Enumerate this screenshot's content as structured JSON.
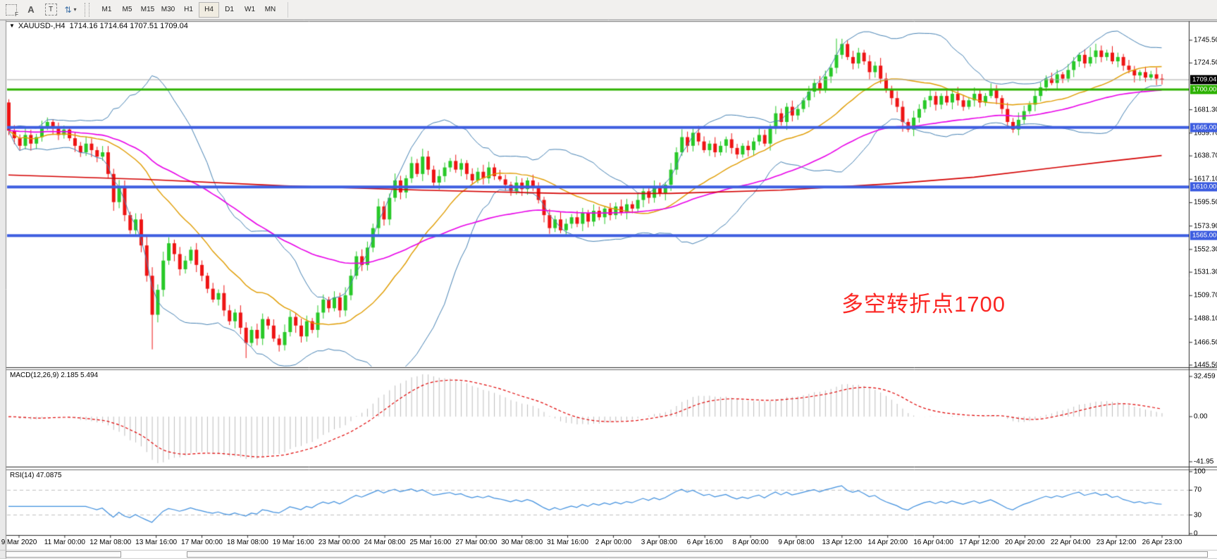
{
  "toolbar": {
    "tools": [
      {
        "name": "fibonacci-tool",
        "glyph": "F"
      },
      {
        "name": "text-label-tool",
        "glyph": "A"
      },
      {
        "name": "text-tool",
        "glyph": "T"
      },
      {
        "name": "arrow-objects-tool",
        "glyph": "⇅"
      }
    ],
    "caret": "▾",
    "timeframes": [
      "M1",
      "M5",
      "M15",
      "M30",
      "H1",
      "H4",
      "D1",
      "W1",
      "MN"
    ],
    "active_timeframe": "H4"
  },
  "chart": {
    "symbol_marker": "▼",
    "symbol_label": "XAUUSD-,H4",
    "ohlc_label": "1714.16 1714.64 1707.51 1709.04",
    "annotation": {
      "text": "多空转折点1700",
      "color": "#fb2623"
    },
    "price_axis": {
      "ticks": [
        "1745.50",
        "1724.50",
        "1681.30",
        "1659.70",
        "1638.70",
        "1617.10",
        "1595.50",
        "1573.90",
        "1552.30",
        "1531.30",
        "1509.70",
        "1488.10",
        "1466.50",
        "1445.50"
      ],
      "current_price": {
        "label": "1709.04",
        "value": 1709.04,
        "bg": "#000000"
      },
      "levels": [
        {
          "label": "1700.00",
          "value": 1700.0,
          "color": "#2db200",
          "width": 3
        },
        {
          "label": "1665.00",
          "value": 1665.0,
          "color": "#3e5ee0",
          "width": 4
        },
        {
          "label": "1610.00",
          "value": 1610.0,
          "color": "#3e5ee0",
          "width": 4
        },
        {
          "label": "1565.00",
          "value": 1565.0,
          "color": "#3e5ee0",
          "width": 4
        }
      ]
    },
    "time_axis": {
      "labels": [
        "9 Mar 2020",
        "11 Mar 00:00",
        "12 Mar 08:00",
        "13 Mar 16:00",
        "17 Mar 00:00",
        "18 Mar 08:00",
        "19 Mar 16:00",
        "23 Mar 00:00",
        "24 Mar 08:00",
        "25 Mar 16:00",
        "27 Mar 00:00",
        "30 Mar 08:00",
        "31 Mar 16:00",
        "2 Apr 00:00",
        "3 Apr 08:00",
        "6 Apr 16:00",
        "8 Apr 00:00",
        "9 Apr 08:00",
        "13 Apr 12:00",
        "14 Apr 20:00",
        "16 Apr 04:00",
        "17 Apr 12:00",
        "20 Apr 20:00",
        "22 Apr 04:00",
        "23 Apr 12:00",
        "26 Apr 23:00"
      ]
    }
  },
  "macd_panel": {
    "label": "MACD(12,26,9) 2.185 5.494",
    "axis": [
      "32.459",
      "0.00",
      "-41.95"
    ]
  },
  "rsi_panel": {
    "label": "RSI(14) 47.0875",
    "axis": [
      "100",
      "70",
      "30",
      "0"
    ],
    "levels": [
      70,
      30
    ]
  },
  "chart_data": {
    "type": "candlestick",
    "symbol": "XAUUSD-",
    "timeframe": "H4",
    "last_bar": {
      "open": 1714.16,
      "high": 1714.64,
      "low": 1707.51,
      "close": 1709.04
    },
    "first_open": 1688,
    "closes": [
      1662,
      1655,
      1648,
      1658,
      1650,
      1656,
      1665,
      1670,
      1664,
      1658,
      1663,
      1655,
      1648,
      1642,
      1650,
      1644,
      1638,
      1642,
      1622,
      1596,
      1610,
      1584,
      1570,
      1580,
      1556,
      1528,
      1492,
      1515,
      1542,
      1558,
      1548,
      1534,
      1542,
      1552,
      1538,
      1528,
      1516,
      1506,
      1512,
      1496,
      1486,
      1494,
      1480,
      1466,
      1478,
      1470,
      1488,
      1482,
      1470,
      1464,
      1476,
      1490,
      1482,
      1472,
      1486,
      1478,
      1494,
      1506,
      1498,
      1508,
      1496,
      1510,
      1528,
      1546,
      1538,
      1554,
      1572,
      1592,
      1580,
      1600,
      1616,
      1605,
      1618,
      1632,
      1622,
      1638,
      1626,
      1614,
      1620,
      1628,
      1634,
      1626,
      1632,
      1622,
      1616,
      1624,
      1618,
      1628,
      1620,
      1617,
      1612,
      1606,
      1614,
      1608,
      1616,
      1610,
      1598,
      1584,
      1572,
      1580,
      1570,
      1576,
      1582,
      1576,
      1586,
      1578,
      1588,
      1582,
      1590,
      1584,
      1592,
      1586,
      1594,
      1590,
      1598,
      1606,
      1600,
      1610,
      1604,
      1612,
      1626,
      1642,
      1656,
      1648,
      1660,
      1652,
      1644,
      1650,
      1642,
      1648,
      1654,
      1646,
      1640,
      1648,
      1644,
      1652,
      1658,
      1650,
      1664,
      1678,
      1670,
      1684,
      1676,
      1682,
      1690,
      1698,
      1706,
      1700,
      1712,
      1720,
      1732,
      1742,
      1730,
      1724,
      1734,
      1726,
      1716,
      1722,
      1710,
      1700,
      1692,
      1684,
      1670,
      1663,
      1674,
      1682,
      1690,
      1694,
      1686,
      1694,
      1688,
      1696,
      1690,
      1684,
      1690,
      1696,
      1688,
      1694,
      1700,
      1692,
      1682,
      1670,
      1663,
      1672,
      1680,
      1686,
      1694,
      1702,
      1710,
      1706,
      1714,
      1710,
      1718,
      1726,
      1732,
      1724,
      1730,
      1736,
      1730,
      1734,
      1726,
      1730,
      1722,
      1718,
      1713,
      1716,
      1711,
      1714,
      1710,
      1709.04
    ],
    "wick_low_overrides": {
      "26": 1460,
      "43": 1452,
      "49": 1458,
      "162": 1661,
      "182": 1660
    },
    "wick_high_overrides": {
      "0": 1691,
      "150": 1747,
      "196": 1739
    },
    "indicators": {
      "bollinger": {
        "period": 20,
        "deviation": 2
      },
      "ma_mid": {
        "type": "sma",
        "period": 20
      },
      "ma_slow": {
        "type": "ema",
        "period": 60
      },
      "macd": {
        "fast": 12,
        "slow": 26,
        "signal": 9
      },
      "rsi": {
        "period": 14
      },
      "sma200_waypoints": [
        [
          0,
          1621
        ],
        [
          25,
          1617
        ],
        [
          50,
          1611
        ],
        [
          75,
          1607
        ],
        [
          100,
          1604
        ],
        [
          120,
          1604
        ],
        [
          140,
          1607
        ],
        [
          160,
          1613
        ],
        [
          175,
          1619
        ],
        [
          190,
          1628
        ],
        [
          200,
          1634
        ],
        [
          209,
          1639
        ]
      ]
    },
    "colors": {
      "up": "#28c928",
      "down": "#ee1414",
      "bands": "#4682b4",
      "ma_mid": "#e09c00",
      "ma_slow": "#e800e8",
      "sma200": "#d40000",
      "macd_hist": "#bdbdbd",
      "macd_signal": "#e00000",
      "rsi": "#3f8fde",
      "rsi_levels": "#c0c0c0",
      "current_price_line": "#a6a6a6"
    }
  }
}
